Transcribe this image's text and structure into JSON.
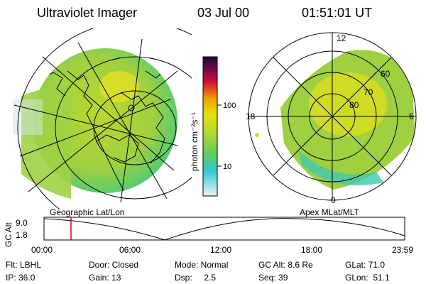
{
  "header": {
    "instrument": "Ultraviolet Imager",
    "date": "03 Jul 00",
    "time": "01:51:01 UT"
  },
  "colorbar": {
    "label": "photon cm⁻²s⁻¹",
    "ticks": [
      "100",
      "10"
    ]
  },
  "left_panel": {
    "label": "Geographic Lat/Lon"
  },
  "right_panel": {
    "label": "Apex MLat/MLT",
    "mlt_labels": {
      "top": "12",
      "left": "18",
      "right": "6",
      "bottom": "0"
    },
    "lat_labels": [
      "60",
      "70",
      "80"
    ]
  },
  "altitude_plot": {
    "ylabel": "GC Alt",
    "yticks": [
      "9.0",
      "1.8"
    ],
    "xticks": [
      "00:00",
      "06:00",
      "12:00",
      "18:00",
      "23:59"
    ]
  },
  "info": {
    "row1": {
      "flt": "Flt: LBHL",
      "door": "Door: Closed",
      "mode": "Mode: Normal",
      "gcalt": "GC Alt: 8.6 Re",
      "glat": "GLat:  71.0"
    },
    "row2": {
      "ip": "IP: 36.0",
      "gain": "Gain: 13",
      "dsp": "Dsp:     2.5",
      "seq": "Seq: 39",
      "glon": "GLon:  51.1"
    }
  }
}
